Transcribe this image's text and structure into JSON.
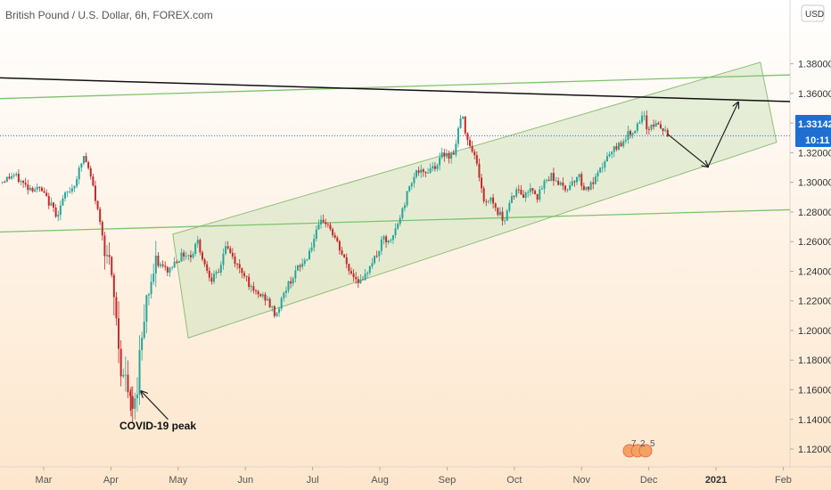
{
  "header": {
    "title": "British Pound / U.S. Dollar, 6h, FOREX.com",
    "currency_badge": "USD"
  },
  "price_tag": {
    "price": "1.33142",
    "countdown": "10:11"
  },
  "annotation": {
    "label": "COVID-19 peak"
  },
  "event_badge": {
    "digits": [
      "7",
      "2",
      "5"
    ]
  },
  "colors": {
    "background_top": "#ffffff",
    "background_bottom": "#fde6cc",
    "up_candle": "#26a69a",
    "down_candle": "#c62828",
    "channel_fill": "#cfe3c0",
    "channel_line": "#8fbf78",
    "trendline": "#111111",
    "support_line": "#7cc36a",
    "price_line": "#2962ff",
    "price_tag_bg": "#1f6fd1"
  },
  "chart_data": {
    "type": "candlestick",
    "symbol": "GBPUSD",
    "timeframe": "6h",
    "y_axis": {
      "ticks": [
        "1.38000",
        "1.36000",
        "1.34000",
        "1.32000",
        "1.30000",
        "1.28000",
        "1.26000",
        "1.24000",
        "1.22000",
        "1.20000",
        "1.18000",
        "1.16000",
        "1.14000",
        "1.12000"
      ],
      "range": [
        1.108,
        1.405
      ]
    },
    "x_axis": {
      "ticks": [
        {
          "label": "Mar",
          "month": 2
        },
        {
          "label": "Apr",
          "month": 3
        },
        {
          "label": "May",
          "month": 4
        },
        {
          "label": "Jun",
          "month": 5
        },
        {
          "label": "Jul",
          "month": 6
        },
        {
          "label": "Aug",
          "month": 7
        },
        {
          "label": "Sep",
          "month": 8
        },
        {
          "label": "Oct",
          "month": 9
        },
        {
          "label": "Nov",
          "month": 10
        },
        {
          "label": "Dec",
          "month": 11
        },
        {
          "label": "2021",
          "month": 12,
          "bold": true
        },
        {
          "label": "Feb",
          "month": 13
        }
      ],
      "range_months": [
        1.35,
        13.1
      ]
    },
    "price_path": [
      [
        1.35,
        1.3
      ],
      [
        1.55,
        1.305
      ],
      [
        1.75,
        1.297
      ],
      [
        1.95,
        1.295
      ],
      [
        2.1,
        1.285
      ],
      [
        2.2,
        1.278
      ],
      [
        2.3,
        1.29
      ],
      [
        2.45,
        1.298
      ],
      [
        2.6,
        1.318
      ],
      [
        2.72,
        1.3
      ],
      [
        2.85,
        1.27
      ],
      [
        2.95,
        1.25
      ],
      [
        3.05,
        1.22
      ],
      [
        3.15,
        1.175
      ],
      [
        3.25,
        1.16
      ],
      [
        3.3,
        1.145
      ],
      [
        3.36,
        1.15
      ],
      [
        3.45,
        1.195
      ],
      [
        3.5,
        1.215
      ],
      [
        3.58,
        1.232
      ],
      [
        3.7,
        1.245
      ],
      [
        3.85,
        1.24
      ],
      [
        3.98,
        1.248
      ],
      [
        4.1,
        1.252
      ],
      [
        4.2,
        1.25
      ],
      [
        4.28,
        1.262
      ],
      [
        4.38,
        1.246
      ],
      [
        4.5,
        1.235
      ],
      [
        4.6,
        1.238
      ],
      [
        4.7,
        1.258
      ],
      [
        4.8,
        1.25
      ],
      [
        4.9,
        1.242
      ],
      [
        5.0,
        1.238
      ],
      [
        5.1,
        1.226
      ],
      [
        5.2,
        1.224
      ],
      [
        5.3,
        1.222
      ],
      [
        5.45,
        1.21
      ],
      [
        5.6,
        1.228
      ],
      [
        5.75,
        1.24
      ],
      [
        5.9,
        1.248
      ],
      [
        6.05,
        1.265
      ],
      [
        6.15,
        1.275
      ],
      [
        6.25,
        1.27
      ],
      [
        6.35,
        1.26
      ],
      [
        6.45,
        1.25
      ],
      [
        6.55,
        1.24
      ],
      [
        6.65,
        1.235
      ],
      [
        6.75,
        1.232
      ],
      [
        6.85,
        1.245
      ],
      [
        6.95,
        1.25
      ],
      [
        7.05,
        1.262
      ],
      [
        7.15,
        1.258
      ],
      [
        7.25,
        1.27
      ],
      [
        7.35,
        1.283
      ],
      [
        7.45,
        1.3
      ],
      [
        7.55,
        1.308
      ],
      [
        7.65,
        1.305
      ],
      [
        7.75,
        1.31
      ],
      [
        7.85,
        1.312
      ],
      [
        7.95,
        1.32
      ],
      [
        8.05,
        1.318
      ],
      [
        8.12,
        1.322
      ],
      [
        8.18,
        1.34
      ],
      [
        8.22,
        1.345
      ],
      [
        8.3,
        1.33
      ],
      [
        8.4,
        1.32
      ],
      [
        8.5,
        1.3
      ],
      [
        8.55,
        1.285
      ],
      [
        8.65,
        1.29
      ],
      [
        8.75,
        1.28
      ],
      [
        8.85,
        1.275
      ],
      [
        8.95,
        1.29
      ],
      [
        9.05,
        1.295
      ],
      [
        9.15,
        1.29
      ],
      [
        9.25,
        1.298
      ],
      [
        9.35,
        1.29
      ],
      [
        9.45,
        1.3
      ],
      [
        9.55,
        1.305
      ],
      [
        9.65,
        1.3
      ],
      [
        9.75,
        1.295
      ],
      [
        9.85,
        1.3
      ],
      [
        9.95,
        1.305
      ],
      [
        10.05,
        1.295
      ],
      [
        10.15,
        1.298
      ],
      [
        10.25,
        1.305
      ],
      [
        10.35,
        1.315
      ],
      [
        10.45,
        1.32
      ],
      [
        10.55,
        1.325
      ],
      [
        10.65,
        1.33
      ],
      [
        10.75,
        1.335
      ],
      [
        10.85,
        1.338
      ],
      [
        10.92,
        1.345
      ],
      [
        10.98,
        1.335
      ],
      [
        11.05,
        1.34
      ],
      [
        11.15,
        1.338
      ],
      [
        11.22,
        1.335
      ],
      [
        11.28,
        1.331
      ]
    ],
    "covid_low": {
      "month": 3.3,
      "price": 1.142
    },
    "current_price": 1.33142,
    "trendline": {
      "start": {
        "month": 1.35,
        "price": 1.3705
      },
      "end": {
        "month": 13.1,
        "price": 1.3545
      }
    },
    "support_lines": [
      {
        "start": {
          "month": 1.35,
          "price": 1.3565
        },
        "end": {
          "month": 13.1,
          "price": 1.3725
        }
      },
      {
        "start": {
          "month": 1.35,
          "price": 1.2665
        },
        "end": {
          "month": 13.1,
          "price": 1.2815
        }
      }
    ],
    "channel": [
      {
        "month": 4.15,
        "price": 1.195
      },
      {
        "month": 3.92,
        "price": 1.265
      },
      {
        "month": 12.66,
        "price": 1.381
      },
      {
        "month": 12.9,
        "price": 1.327
      }
    ],
    "projection": [
      {
        "month": 11.28,
        "price": 1.3325
      },
      {
        "month": 11.88,
        "price": 1.3105
      },
      {
        "month": 12.33,
        "price": 1.354
      }
    ],
    "annotation_arrow": {
      "from": {
        "month": 3.85,
        "price": 1.14
      },
      "to": {
        "month": 3.45,
        "price": 1.159
      }
    }
  }
}
